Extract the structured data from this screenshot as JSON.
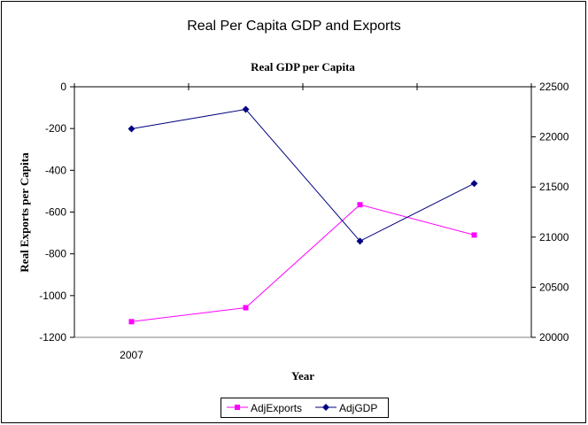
{
  "chart_data": {
    "type": "line",
    "title": "Real Per Capita GDP and Exports",
    "subtitle": "Real GDP per Capita",
    "xlabel": "Year",
    "ylabel": "Real Exports per Capita",
    "categories": [
      "2007",
      "",
      "",
      ""
    ],
    "ylim": [
      -1200,
      0
    ],
    "y_ticks": [
      "0",
      "-200",
      "-400",
      "-600",
      "-800",
      "-1000",
      "-1200"
    ],
    "y2lim": [
      20000,
      22500
    ],
    "y2_ticks": [
      "22500",
      "22000",
      "21500",
      "21000",
      "20500",
      "20000"
    ],
    "grid": false,
    "legend_position": "bottom",
    "series": [
      {
        "name": "AdjExports",
        "axis": "left",
        "color": "#ff00ff",
        "marker": "square",
        "values": [
          -1125,
          -1058,
          -565,
          -710
        ]
      },
      {
        "name": "AdjGDP",
        "axis": "right",
        "color": "#000080",
        "marker": "diamond",
        "values": [
          22080,
          22275,
          20960,
          21535
        ]
      }
    ]
  }
}
